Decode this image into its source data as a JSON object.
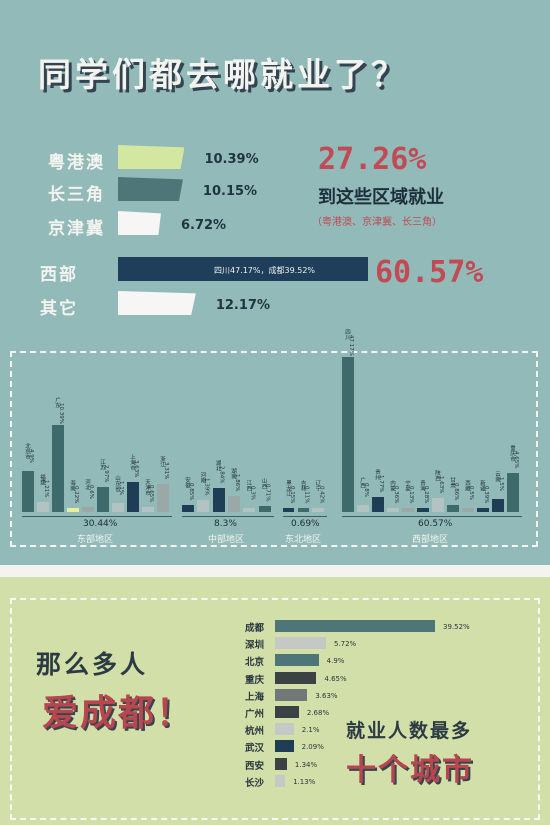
{
  "title": "同学们都去哪就业了？",
  "chart_data": [
    {
      "type": "bar",
      "orientation": "horizontal",
      "categories": [
        "粤港澳",
        "长三角",
        "京津冀",
        "西部",
        "其它"
      ],
      "values": [
        10.39,
        10.15,
        6.72,
        60.57,
        12.17
      ],
      "value_labels": [
        "10.39%",
        "10.15%",
        "6.72%",
        "",
        "12.17%"
      ],
      "colors": [
        "#d4e7a1",
        "#4e7678",
        "#f6f6f4",
        "#1e3e5a",
        "#f6f6f4"
      ],
      "west_inner": "四川47.17%，成都39.52%",
      "summary": {
        "pct": "27.26%",
        "title": "到这些区域就业",
        "subtitle": "（粤港澳、京津冀、长三角）"
      },
      "west_pct": "60.57%"
    },
    {
      "type": "bar",
      "groups": [
        {
          "name": "东部地区",
          "total": "30.44%",
          "categories": [
            "北京市",
            "福建",
            "广东",
            "海南",
            "河北",
            "江苏",
            "山东省",
            "上海市",
            "天津市",
            "浙江"
          ],
          "values": [
            4.9,
            1.21,
            10.39,
            0.22,
            0.6,
            2.97,
            1.1,
            3.63,
            0.65,
            3.31
          ],
          "labels": [
            "4.9%",
            "1.21%",
            "10.39%",
            "0.22%",
            "0.6%",
            "2.97%",
            "1.1%",
            "3.63%",
            "0.65%",
            "3.31%"
          ],
          "colors": [
            "#3e6a6b",
            "#b3c2c3",
            "#3e6a6b",
            "#e8f0a0",
            "#9aa9a8",
            "#3e6a6b",
            "#b3c2c3",
            "#1f3d55",
            "#b3c2c3",
            "#9aa9a8"
          ]
        },
        {
          "name": "中部地区",
          "total": "8.3%",
          "categories": [
            "安徽",
            "河南",
            "湖北",
            "湖南",
            "江西",
            "山西"
          ],
          "values": [
            0.85,
            1.39,
            2.84,
            1.86,
            0.3,
            0.71
          ],
          "labels": [
            "0.85%",
            "1.39%",
            "2.84%",
            "1.86%",
            "0.3%",
            "0.71%"
          ],
          "colors": [
            "#1f3d55",
            "#b3c2c3",
            "#1f3d55",
            "#9aa9a8",
            "#b3c2c3",
            "#3e6a6b"
          ]
        },
        {
          "name": "东北地区",
          "total": "0.69%",
          "categories": [
            "黑龙江",
            "吉林",
            "辽宁"
          ],
          "values": [
            0.15,
            0.11,
            0.42
          ],
          "labels": [
            "0.15%",
            "0.11%",
            "0.42%"
          ],
          "colors": [
            "#1f3d55",
            "#3e6a6b",
            "#b3c2c3"
          ]
        },
        {
          "name": "西部地区",
          "total": "60.57%",
          "categories": [
            "四川",
            "广西",
            "贵州",
            "内蒙",
            "宁夏",
            "青海",
            "陕西",
            "甘肃",
            "西藏",
            "新疆",
            "云南",
            "重庆市"
          ],
          "values": [
            47.17,
            0.8,
            1.77,
            0.36,
            0.13,
            0.28,
            1.63,
            0.86,
            0.5,
            0.39,
            1.5,
            4.65
          ],
          "labels": [
            "47.17%",
            "0.8%",
            "1.77%",
            "0.36%",
            "0.13%",
            "0.28%",
            "1.63%",
            "0.86%",
            "0.5%",
            "0.39%",
            "1.5%",
            "4.65%"
          ],
          "colors": [
            "#3e6a6b",
            "#b3c2c3",
            "#1f3d55",
            "#b3c2c3",
            "#9aa9a8",
            "#1f3d55",
            "#b3c2c3",
            "#3e6a6b",
            "#9aa9a8",
            "#1f3d55",
            "#1f3d55",
            "#3e6a6b"
          ]
        }
      ]
    },
    {
      "type": "bar",
      "orientation": "horizontal",
      "categories": [
        "成都",
        "深圳",
        "北京",
        "重庆",
        "上海",
        "广州",
        "杭州",
        "武汉",
        "西安",
        "长沙"
      ],
      "values": [
        39.52,
        5.72,
        4.9,
        4.65,
        3.63,
        2.68,
        2.1,
        2.09,
        1.34,
        1.13
      ],
      "value_labels": [
        "39.52%",
        "5.72%",
        "4.9%",
        "4.65%",
        "3.63%",
        "2.68%",
        "2.1%",
        "2.09%",
        "1.34%",
        "1.13%"
      ],
      "colors": [
        "#4e7678",
        "#c5c8c4",
        "#4e7678",
        "#3b4244",
        "#727878",
        "#3b4244",
        "#c5c8c4",
        "#1f3d55",
        "#3b4244",
        "#c5c8c4"
      ]
    }
  ],
  "bottom": {
    "left_line1": "那么多人",
    "left_line2": "爱成都！",
    "right_line1": "就业人数最多",
    "right_line2": "十个城市"
  }
}
